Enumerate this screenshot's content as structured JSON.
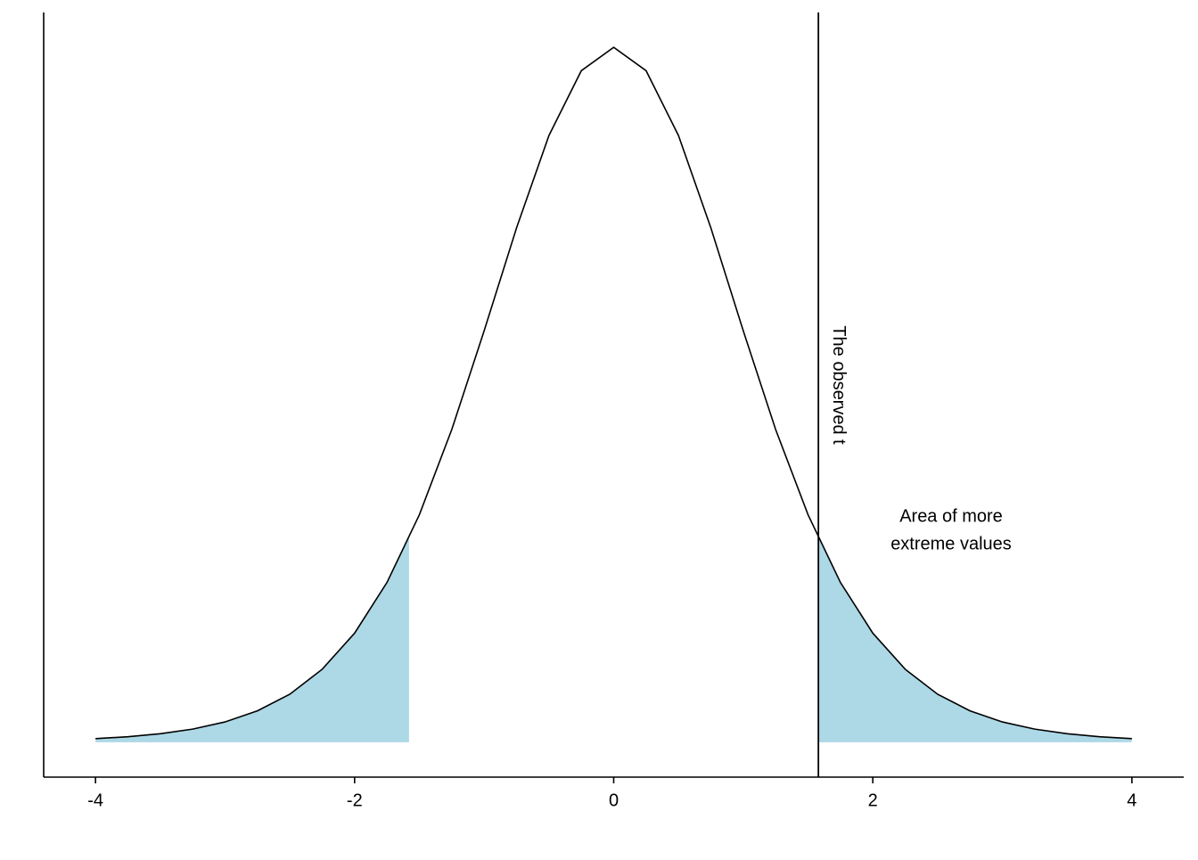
{
  "chart_data": {
    "type": "line",
    "x": [
      -4,
      -3.75,
      -3.5,
      -3.25,
      -3,
      -2.75,
      -2.5,
      -2.25,
      -2,
      -1.75,
      -1.5,
      -1.25,
      -1,
      -0.75,
      -0.5,
      -0.25,
      0,
      0.25,
      0.5,
      0.75,
      1,
      1.25,
      1.5,
      1.75,
      2,
      2.25,
      2.5,
      2.75,
      3,
      3.25,
      3.5,
      3.75,
      4
    ],
    "series": [
      {
        "color": "#000000",
        "fill": "#add8e6",
        "values": [
          0.00203,
          0.00311,
          0.00478,
          0.00738,
          0.0114,
          0.0176,
          0.0269,
          0.0409,
          0.0611,
          0.0895,
          0.1274,
          0.1751,
          0.2304,
          0.288,
          0.3397,
          0.376,
          0.3891,
          0.376,
          0.3397,
          0.288,
          0.2304,
          0.1751,
          0.1274,
          0.0895,
          0.0611,
          0.0409,
          0.0269,
          0.0176,
          0.0114,
          0.00738,
          0.00478,
          0.00311,
          0.00203
        ]
      }
    ],
    "shade_ranges": [
      [
        -4,
        -1.58
      ],
      [
        1.58,
        4
      ]
    ],
    "vline": {
      "value": 1.58,
      "label": "The observed t"
    },
    "annotation": [
      "Area of more",
      "extreme values"
    ],
    "xlim": [
      -4.4,
      4.4
    ],
    "ylim": [
      -0.0195,
      0.4086
    ],
    "xticks": [
      -4,
      -2,
      0,
      2,
      4
    ]
  }
}
